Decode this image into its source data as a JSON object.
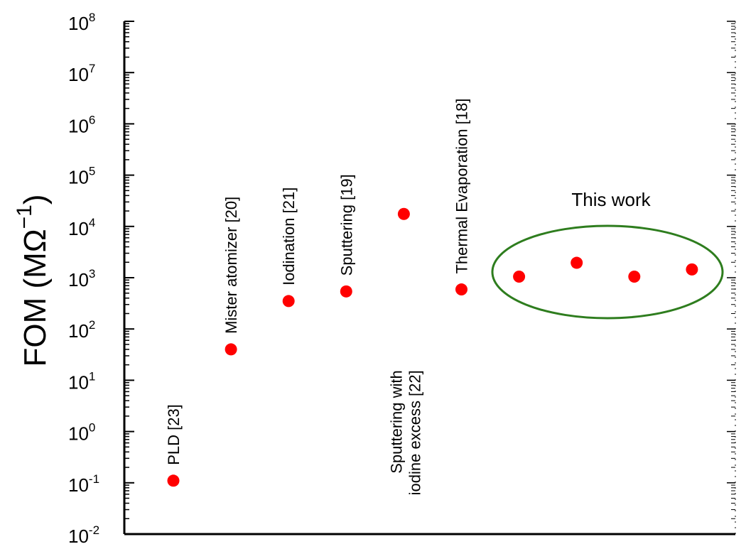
{
  "chart_data": {
    "type": "scatter",
    "title": "",
    "xlabel": "",
    "ylabel": {
      "text": "FOM (MΩ",
      "superscript": "−1",
      "suffix": ")"
    },
    "y_scale": "log",
    "ylim": [
      0.01,
      100000000
    ],
    "y_tick_labels": [
      {
        "base": "10",
        "exp": "-2"
      },
      {
        "base": "10",
        "exp": "-1"
      },
      {
        "base": "10",
        "exp": "0"
      },
      {
        "base": "10",
        "exp": "1"
      },
      {
        "base": "10",
        "exp": "2"
      },
      {
        "base": "10",
        "exp": "3"
      },
      {
        "base": "10",
        "exp": "4"
      },
      {
        "base": "10",
        "exp": "5"
      },
      {
        "base": "10",
        "exp": "6"
      },
      {
        "base": "10",
        "exp": "7"
      },
      {
        "base": "10",
        "exp": "8"
      }
    ],
    "x_ticks_labeled": false,
    "grid": false,
    "marker_color": "#ff0000",
    "points": [
      {
        "label": "PLD  [23]",
        "y": 0.11
      },
      {
        "label": "Mister atomizer [20]",
        "y": 40
      },
      {
        "label": "Iodination [21]",
        "y": 350
      },
      {
        "label": "Sputtering [19]",
        "y": 540
      },
      {
        "label": "Sputtering with\niodine excess [22]",
        "y": 17500
      },
      {
        "label": "Thermal Evaporation [18]",
        "y": 590
      },
      {
        "label": "",
        "y": 1050
      },
      {
        "label": "",
        "y": 1950
      },
      {
        "label": "",
        "y": 1050
      },
      {
        "label": "",
        "y": 1450
      }
    ],
    "annotations": [
      {
        "text": "This work",
        "shape": "ellipse",
        "color": "#2e7d1e"
      }
    ]
  }
}
